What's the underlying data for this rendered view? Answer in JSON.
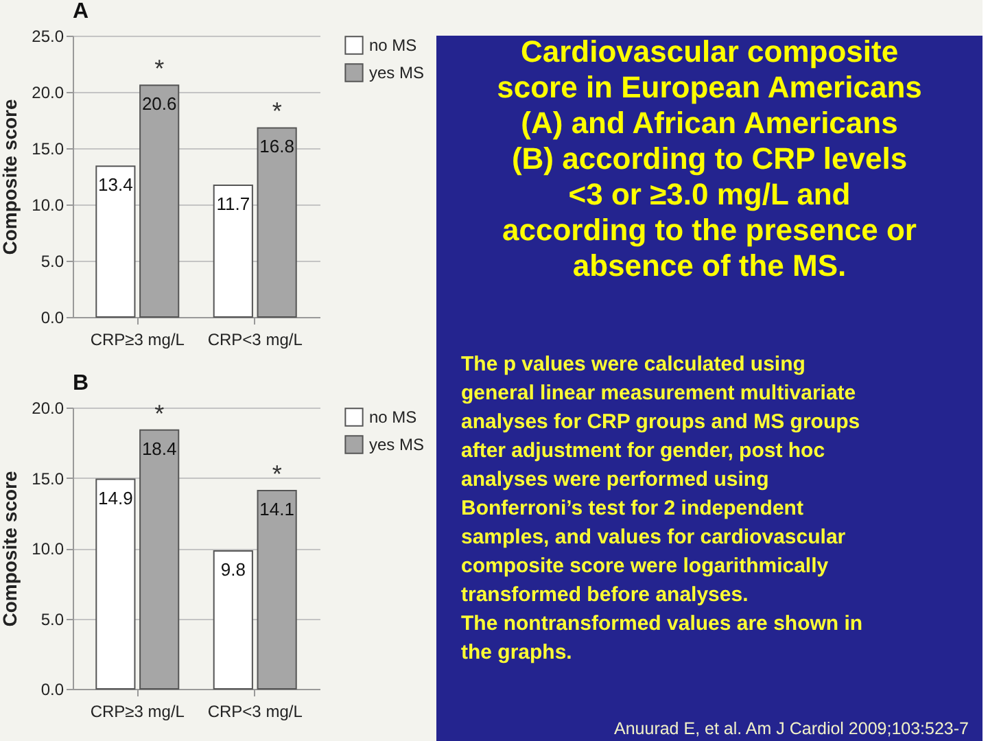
{
  "chart_data": [
    {
      "type": "bar",
      "title": "A",
      "ylabel": "Composite score",
      "categories": [
        "CRP≥3 mg/L",
        "CRP<3 mg/L"
      ],
      "series": [
        {
          "name": "no MS",
          "color": "#ffffff",
          "values": [
            13.4,
            11.7
          ]
        },
        {
          "name": "yes MS",
          "color": "#a6a6a6",
          "values": [
            20.6,
            16.8
          ]
        }
      ],
      "ylim": [
        0,
        25
      ],
      "yticks": [
        {
          "value": 0,
          "label": "0.0"
        },
        {
          "value": 5,
          "label": "5.0"
        },
        {
          "value": 10,
          "label": "10.0"
        },
        {
          "value": 15,
          "label": "15.0"
        },
        {
          "value": 20,
          "label": "20.0"
        },
        {
          "value": 25,
          "label": "25.0"
        }
      ],
      "grid": "y",
      "legend": "right",
      "data_labels": true,
      "annotations": [
        {
          "text": "*",
          "x": "CRP≥3 mg/L",
          "y": 20.6
        },
        {
          "text": "*",
          "x": "CRP<3 mg/L",
          "y": 16.8
        }
      ]
    },
    {
      "type": "bar",
      "title": "B",
      "ylabel": "Composite score",
      "categories": [
        "CRP≥3 mg/L",
        "CRP<3 mg/L"
      ],
      "series": [
        {
          "name": "no MS",
          "color": "#ffffff",
          "values": [
            14.9,
            9.8
          ]
        },
        {
          "name": "yes MS",
          "color": "#a6a6a6",
          "values": [
            18.4,
            14.1
          ]
        }
      ],
      "ylim": [
        0,
        20
      ],
      "yticks": [
        {
          "value": 0,
          "label": "0.0"
        },
        {
          "value": 5,
          "label": "5.0"
        },
        {
          "value": 10,
          "label": "10.0"
        },
        {
          "value": 15,
          "label": "15.0"
        },
        {
          "value": 20,
          "label": "20.0"
        }
      ],
      "grid": "y",
      "legend": "right",
      "data_labels": true,
      "annotations": [
        {
          "text": "*",
          "x": "CRP≥3 mg/L",
          "y": 18.4
        },
        {
          "text": "*",
          "x": "CRP<3 mg/L",
          "y": 14.1
        }
      ]
    },
    {
      "type": "other",
      "title": "Cardiovascular composite score in European Americans (A) and African Americans (B) according to CRP levels <3 or ≥3.0 mg/L and according to the presence or absence of the MS.",
      "annotations": [
        "The p values were calculated using general linear measurement multivariate analyses for CRP groups and MS groups after adjustment for gender, post hoc analyses were performed using Bonferroni’s test for 2 independent samples, and values for cardiovascular composite score were logarithmically transformed before analyses.",
        "The nontransformed values are shown in the graphs.",
        "Anuurad E, et al. Am J Cardiol 2009;103:523-7"
      ]
    }
  ]
}
